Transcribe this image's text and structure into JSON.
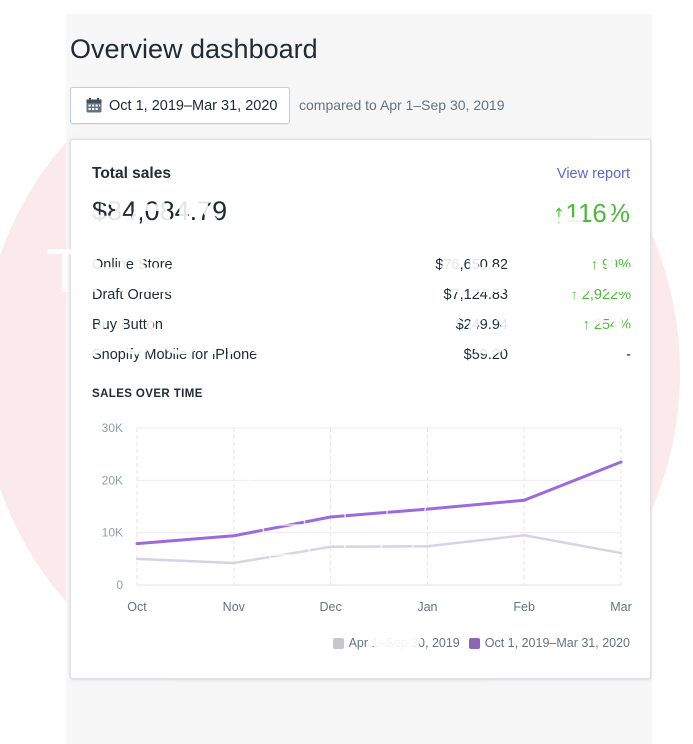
{
  "page": {
    "title": "Overview dashboard"
  },
  "date_picker": {
    "label": "Oct 1, 2019–Mar 31, 2020",
    "compared_text": "compared to Apr 1–Sep 30, 2019"
  },
  "card": {
    "title": "Total sales",
    "view_report": "View report",
    "total_value": "$84,084.79",
    "total_change": "↑116%",
    "rows": [
      {
        "name": "Online Store",
        "value": "$76,650.82",
        "change": "↑ 99%"
      },
      {
        "name": "Draft Orders",
        "value": "$7,124.83",
        "change": "↑ 2,922%"
      },
      {
        "name": "Buy Button",
        "value": "$249.94",
        "change": "↑ 254%"
      },
      {
        "name": "Shopify Mobile for iPhone",
        "value": "$59.20",
        "change": "-"
      }
    ],
    "chart_title": "SALES OVER TIME"
  },
  "colors": {
    "accent": "#5c6ac4",
    "positive": "#50b83c",
    "current_series": "#9c6ade",
    "previous_series": "#d7d3e6",
    "watermark": "#fbe9ec"
  },
  "icons": {
    "date_picker": "calendar-icon"
  },
  "watermark": {
    "line1a": "SARAH",
    "line1b": "QUINNEY",
    "line2a": "THE",
    "line2b": "E-COMMERCE",
    "line3a": "BUSINESS",
    "line3b": "COACH"
  },
  "chart_data": {
    "type": "line",
    "categories": [
      "Oct",
      "Nov",
      "Dec",
      "Jan",
      "Feb",
      "Mar"
    ],
    "yticks": [
      "0",
      "10K",
      "20K",
      "30K"
    ],
    "ylim": [
      0,
      30000
    ],
    "series": [
      {
        "name": "Apr 1–Sep 30, 2019",
        "values": [
          5000,
          4200,
          7300,
          7400,
          9500,
          6100
        ],
        "color": "#d7d3e6"
      },
      {
        "name": "Oct 1, 2019–Mar 31, 2020",
        "values": [
          7900,
          9400,
          13000,
          14500,
          16200,
          23500
        ],
        "color": "#9c6ade"
      }
    ],
    "grid": true,
    "legend": "bottom-right",
    "title": "SALES OVER TIME"
  }
}
